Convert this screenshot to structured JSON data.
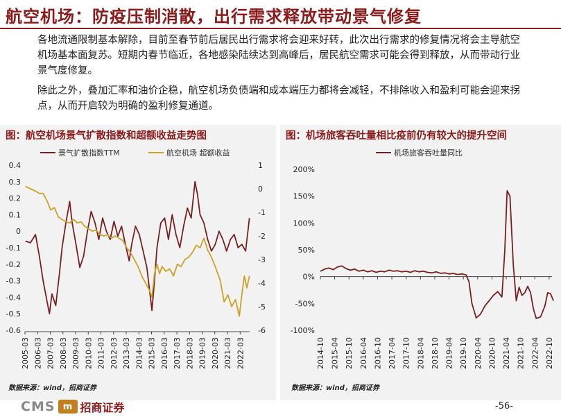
{
  "header": {
    "title": "航空机场：防疫压制消散，出行需求释放带动景气修复"
  },
  "body": {
    "paragraph1": "各地流通限制基本解除，目前至春节前后居民出行需求将会迎来好转，此次出行需求的修复情况将会主导航空机场基本面复苏。短期内春节临近，各地感染陆续达到高峰后，居民航空需求可能会得到释放，从而带动行业景气度修复。",
    "paragraph2": "除此之外，叠加汇率和油价企稳，航空机场负债端和成本端压力都将会减轻，不排除收入和盈利可能会迎来拐点，从而开启较为明确的盈利修复通道。"
  },
  "footer": {
    "logo_latin": "CMS",
    "logo_badge": "m",
    "logo_cn": "招商证券",
    "page": "-56-"
  },
  "colors": {
    "accent": "#8B1A1A",
    "series_dark": "#7a1f1f",
    "series_gold": "#c9a227",
    "panel_bg": "#f2f2f2"
  },
  "chart_data": [
    {
      "type": "line",
      "title": "图：航空机场景气扩散指数和超额收益走势图",
      "source": "数据来源：wind，招商证券",
      "legend": [
        "景气扩散指数TTM",
        "航空机场 超额收益"
      ],
      "legend_position": "top",
      "x_ticks": [
        "2005-03",
        "2006-03",
        "2007-03",
        "2008-03",
        "2009-03",
        "2010-03",
        "2011-03",
        "2012-03",
        "2013-03",
        "2014-03",
        "2015-03",
        "2016-03",
        "2017-03",
        "2018-03",
        "2019-03",
        "2020-03",
        "2021-03",
        "2022-03"
      ],
      "ylim_left": [
        -0.6,
        0.4
      ],
      "yticks_left": [
        "0.4",
        "0.3",
        "0.2",
        "0.1",
        "0",
        "-0.1",
        "-0.2",
        "-0.3",
        "-0.4",
        "-0.5",
        "-0.6"
      ],
      "ylim_right": [
        -6,
        1
      ],
      "yticks_right": [
        "1",
        "0",
        "-1",
        "-2",
        "-3",
        "-4",
        "-5",
        "-6"
      ],
      "grid": false,
      "series": [
        {
          "name": "景气扩散指数TTM",
          "axis": "left",
          "color": "#7a1f1f",
          "points": [
            [
              2005.2,
              -0.06
            ],
            [
              2005.6,
              -0.07
            ],
            [
              2006.0,
              -0.02
            ],
            [
              2006.3,
              -0.15
            ],
            [
              2006.6,
              -0.3
            ],
            [
              2006.9,
              -0.42
            ],
            [
              2007.1,
              -0.5
            ],
            [
              2007.3,
              -0.38
            ],
            [
              2007.6,
              -0.45
            ],
            [
              2007.9,
              -0.25
            ],
            [
              2008.1,
              -0.1
            ],
            [
              2008.4,
              0.05
            ],
            [
              2008.7,
              0.18
            ],
            [
              2008.9,
              0.05
            ],
            [
              2009.2,
              -0.08
            ],
            [
              2009.5,
              -0.22
            ],
            [
              2009.8,
              -0.15
            ],
            [
              2010.1,
              0.0
            ],
            [
              2010.4,
              0.12
            ],
            [
              2010.7,
              0.05
            ],
            [
              2011.0,
              -0.05
            ],
            [
              2011.3,
              0.08
            ],
            [
              2011.6,
              0.0
            ],
            [
              2011.9,
              -0.05
            ],
            [
              2012.2,
              0.06
            ],
            [
              2012.5,
              -0.03
            ],
            [
              2012.8,
              0.03
            ],
            [
              2013.1,
              -0.08
            ],
            [
              2013.4,
              -0.18
            ],
            [
              2013.6,
              -0.08
            ],
            [
              2013.9,
              0.03
            ],
            [
              2014.2,
              -0.02
            ],
            [
              2014.5,
              -0.12
            ],
            [
              2014.8,
              -0.22
            ],
            [
              2015.0,
              -0.35
            ],
            [
              2015.2,
              -0.48
            ],
            [
              2015.4,
              -0.3
            ],
            [
              2015.6,
              -0.1
            ],
            [
              2015.9,
              0.05
            ],
            [
              2016.2,
              0.08
            ],
            [
              2016.5,
              -0.05
            ],
            [
              2016.8,
              0.1
            ],
            [
              2017.1,
              -0.02
            ],
            [
              2017.4,
              -0.1
            ],
            [
              2017.7,
              0.03
            ],
            [
              2018.0,
              0.14
            ],
            [
              2018.3,
              0.08
            ],
            [
              2018.6,
              0.3
            ],
            [
              2018.8,
              0.22
            ],
            [
              2019.0,
              0.1
            ],
            [
              2019.3,
              0.05
            ],
            [
              2019.6,
              -0.05
            ],
            [
              2019.9,
              -0.12
            ],
            [
              2020.2,
              -0.08
            ],
            [
              2020.5,
              0.0
            ],
            [
              2020.8,
              -0.05
            ],
            [
              2021.1,
              -0.12
            ],
            [
              2021.4,
              -0.05
            ],
            [
              2021.7,
              -0.02
            ],
            [
              2022.0,
              -0.1
            ],
            [
              2022.3,
              -0.08
            ],
            [
              2022.6,
              -0.12
            ],
            [
              2022.9,
              0.08
            ]
          ]
        },
        {
          "name": "航空机场 超额收益",
          "axis": "right",
          "color": "#c9a227",
          "points": [
            [
              2005.2,
              0.1
            ],
            [
              2005.6,
              0.0
            ],
            [
              2006.0,
              -0.1
            ],
            [
              2006.3,
              -0.2
            ],
            [
              2006.6,
              -0.2
            ],
            [
              2006.9,
              -0.5
            ],
            [
              2007.2,
              -0.9
            ],
            [
              2007.5,
              -0.8
            ],
            [
              2007.8,
              -1.2
            ],
            [
              2008.1,
              -1.3
            ],
            [
              2008.4,
              -1.4
            ],
            [
              2008.7,
              -1.45
            ],
            [
              2009.0,
              -1.3
            ],
            [
              2009.3,
              -1.45
            ],
            [
              2009.6,
              -1.4
            ],
            [
              2009.9,
              -1.6
            ],
            [
              2010.2,
              -1.7
            ],
            [
              2010.5,
              -1.8
            ],
            [
              2010.8,
              -1.75
            ],
            [
              2011.1,
              -1.95
            ],
            [
              2011.4,
              -2.0
            ],
            [
              2011.7,
              -1.95
            ],
            [
              2012.0,
              -2.1
            ],
            [
              2012.3,
              -2.0
            ],
            [
              2012.6,
              -2.1
            ],
            [
              2012.9,
              -2.2
            ],
            [
              2013.2,
              -2.5
            ],
            [
              2013.5,
              -2.7
            ],
            [
              2013.8,
              -3.0
            ],
            [
              2014.1,
              -3.3
            ],
            [
              2014.4,
              -3.7
            ],
            [
              2014.7,
              -4.0
            ],
            [
              2015.0,
              -4.3
            ],
            [
              2015.2,
              -4.6
            ],
            [
              2015.4,
              -3.6
            ],
            [
              2015.6,
              -3.2
            ],
            [
              2015.8,
              -3.6
            ],
            [
              2016.0,
              -3.3
            ],
            [
              2016.3,
              -3.5
            ],
            [
              2016.6,
              -3.4
            ],
            [
              2016.9,
              -3.7
            ],
            [
              2017.2,
              -3.2
            ],
            [
              2017.5,
              -3.3
            ],
            [
              2017.8,
              -3.0
            ],
            [
              2018.1,
              -2.9
            ],
            [
              2018.4,
              -2.7
            ],
            [
              2018.7,
              -2.4
            ],
            [
              2019.0,
              -2.5
            ],
            [
              2019.3,
              -2.1
            ],
            [
              2019.6,
              -2.6
            ],
            [
              2019.9,
              -2.9
            ],
            [
              2020.2,
              -3.3
            ],
            [
              2020.4,
              -3.6
            ],
            [
              2020.6,
              -3.9
            ],
            [
              2020.9,
              -4.8
            ],
            [
              2021.2,
              -4.5
            ],
            [
              2021.5,
              -5.0
            ],
            [
              2021.8,
              -4.7
            ],
            [
              2022.1,
              -5.4
            ],
            [
              2022.3,
              -4.5
            ],
            [
              2022.5,
              -3.7
            ],
            [
              2022.7,
              -4.2
            ],
            [
              2022.9,
              -3.7
            ]
          ]
        }
      ]
    },
    {
      "type": "line",
      "title": "图：机场旅客吞吐量相比疫前仍有较大的提升空间",
      "source": "数据来源：wind，招商证券",
      "legend": [
        "机场旅客吞吐量同比"
      ],
      "legend_position": "top",
      "x_ticks": [
        "2014-10",
        "2015-04",
        "2015-10",
        "2016-04",
        "2016-10",
        "2017-04",
        "2017-10",
        "2018-04",
        "2018-10",
        "2019-04",
        "2019-10",
        "2020-04",
        "2020-10",
        "2021-04",
        "2021-10",
        "2022-04",
        "2022-10"
      ],
      "ylim": [
        -100,
        200
      ],
      "yticks": [
        "200%",
        "150%",
        "100%",
        "50%",
        "0%",
        "-50%",
        "-100%"
      ],
      "grid": false,
      "series": [
        {
          "name": "机场旅客吞吐量同比",
          "color": "#7a1f1f",
          "points": [
            [
              2014.75,
              10
            ],
            [
              2014.9,
              14
            ],
            [
              2015.05,
              16
            ],
            [
              2015.2,
              13
            ],
            [
              2015.35,
              18
            ],
            [
              2015.5,
              20
            ],
            [
              2015.65,
              15
            ],
            [
              2015.8,
              12
            ],
            [
              2015.95,
              14
            ],
            [
              2016.1,
              10
            ],
            [
              2016.25,
              12
            ],
            [
              2016.4,
              9
            ],
            [
              2016.55,
              11
            ],
            [
              2016.7,
              8
            ],
            [
              2016.85,
              10
            ],
            [
              2017.0,
              9
            ],
            [
              2017.15,
              12
            ],
            [
              2017.3,
              10
            ],
            [
              2017.45,
              11
            ],
            [
              2017.6,
              9
            ],
            [
              2017.75,
              10
            ],
            [
              2017.9,
              8
            ],
            [
              2018.05,
              11
            ],
            [
              2018.2,
              9
            ],
            [
              2018.35,
              10
            ],
            [
              2018.5,
              8
            ],
            [
              2018.65,
              7
            ],
            [
              2018.8,
              9
            ],
            [
              2018.95,
              6
            ],
            [
              2019.1,
              7
            ],
            [
              2019.25,
              5
            ],
            [
              2019.4,
              6
            ],
            [
              2019.55,
              4
            ],
            [
              2019.7,
              5
            ],
            [
              2019.85,
              3
            ],
            [
              2019.95,
              -10
            ],
            [
              2020.05,
              -50
            ],
            [
              2020.2,
              -77
            ],
            [
              2020.35,
              -70
            ],
            [
              2020.5,
              -55
            ],
            [
              2020.65,
              -45
            ],
            [
              2020.8,
              -35
            ],
            [
              2020.95,
              -28
            ],
            [
              2021.1,
              -38
            ],
            [
              2021.2,
              50
            ],
            [
              2021.28,
              160
            ],
            [
              2021.38,
              150
            ],
            [
              2021.5,
              20
            ],
            [
              2021.6,
              -45
            ],
            [
              2021.7,
              -20
            ],
            [
              2021.8,
              -35
            ],
            [
              2021.9,
              -30
            ],
            [
              2022.0,
              -18
            ],
            [
              2022.1,
              -30
            ],
            [
              2022.2,
              -60
            ],
            [
              2022.3,
              -78
            ],
            [
              2022.45,
              -75
            ],
            [
              2022.6,
              -55
            ],
            [
              2022.7,
              -30
            ],
            [
              2022.8,
              -32
            ],
            [
              2022.9,
              -45
            ]
          ]
        }
      ]
    }
  ]
}
